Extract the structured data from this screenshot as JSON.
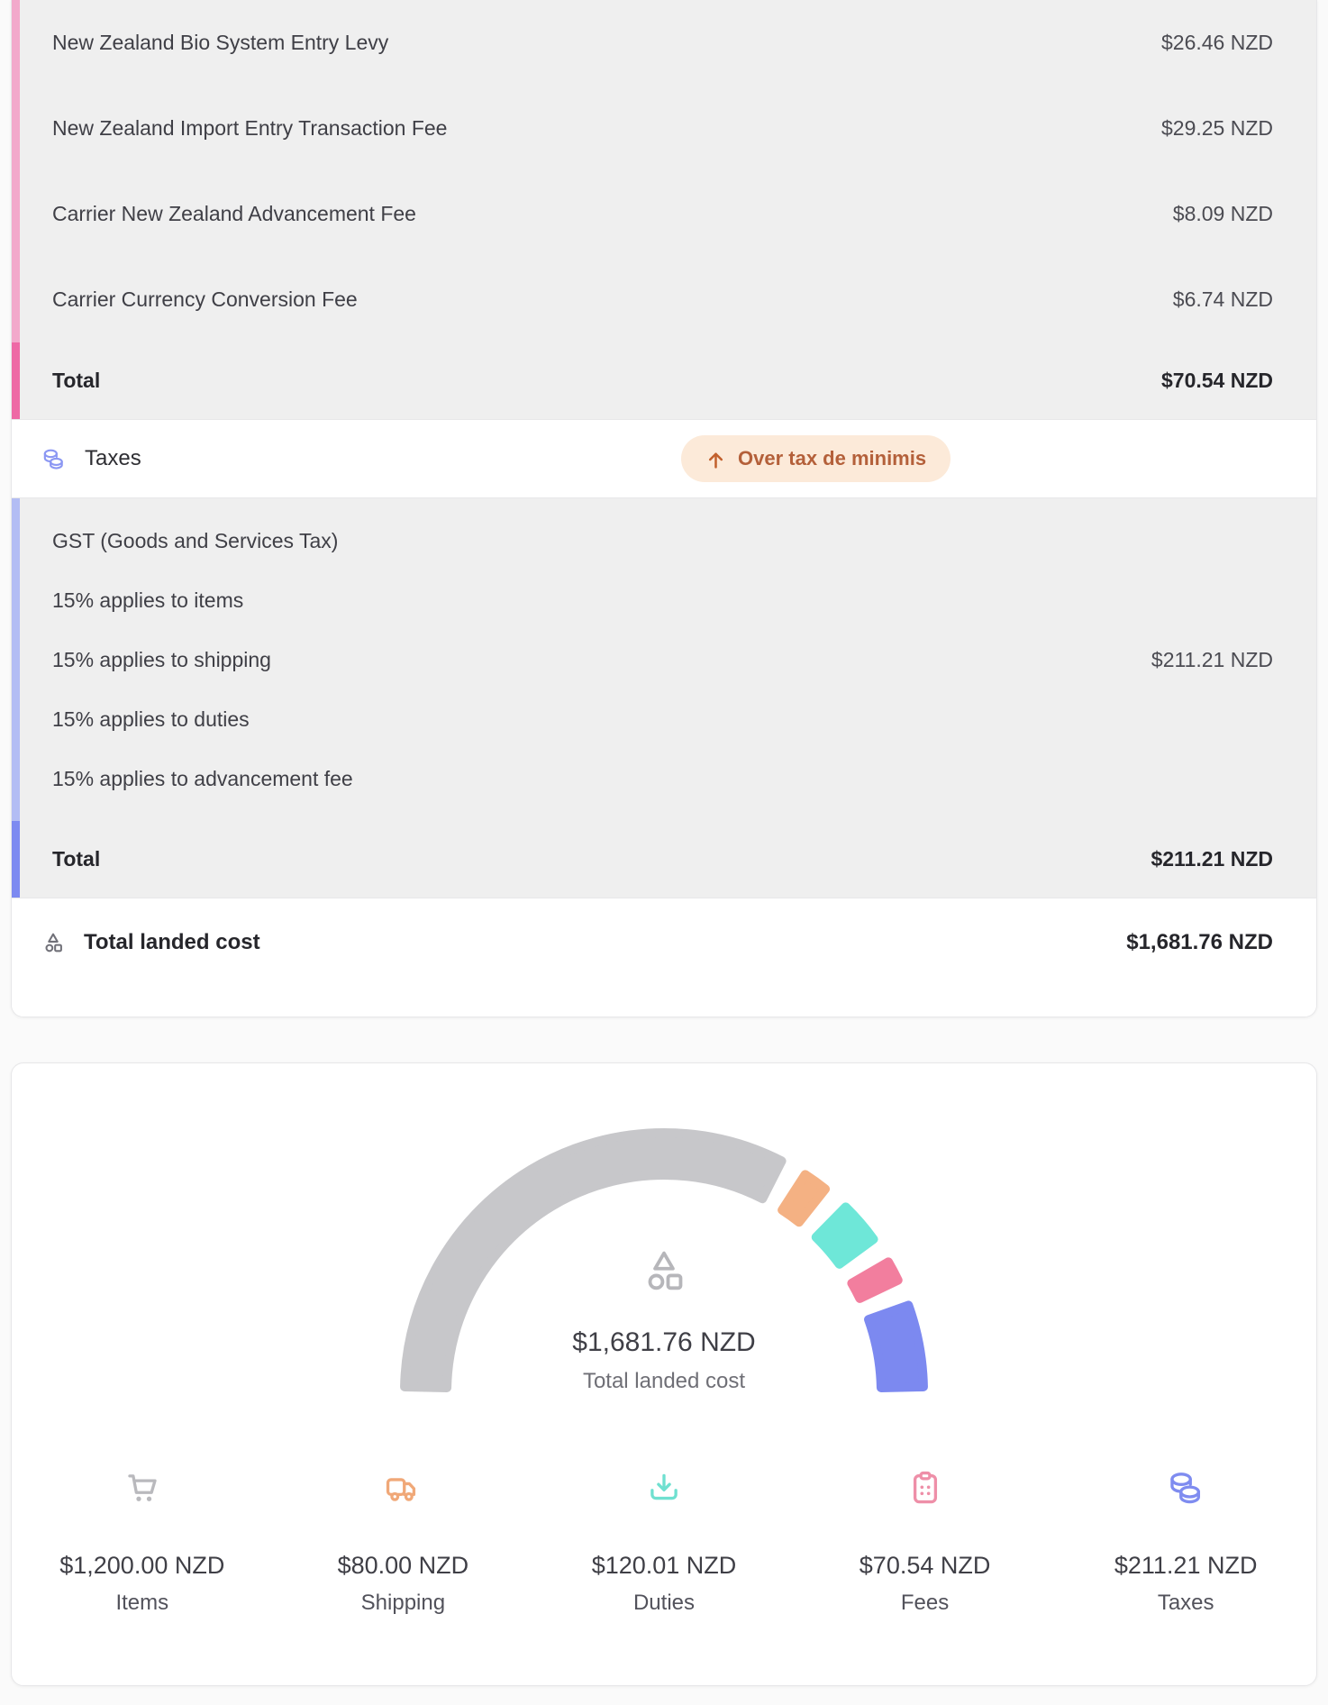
{
  "fees_section": {
    "rows": [
      {
        "label": "New Zealand Bio System Entry Levy",
        "amount": "$26.46 NZD"
      },
      {
        "label": "New Zealand Import Entry Transaction Fee",
        "amount": "$29.25 NZD"
      },
      {
        "label": "Carrier New Zealand Advancement Fee",
        "amount": "$8.09 NZD"
      },
      {
        "label": "Carrier Currency Conversion Fee",
        "amount": "$6.74 NZD"
      }
    ],
    "total": {
      "label": "Total",
      "amount": "$70.54 NZD"
    }
  },
  "taxes_section": {
    "header": "Taxes",
    "badge": "Over tax de minimis",
    "rows": [
      {
        "label": "GST (Goods and Services Tax)",
        "amount": ""
      },
      {
        "label": "15% applies to items",
        "amount": ""
      },
      {
        "label": "15% applies to shipping",
        "amount": "$211.21 NZD"
      },
      {
        "label": "15% applies to duties",
        "amount": ""
      },
      {
        "label": "15% applies to advancement fee",
        "amount": ""
      }
    ],
    "total": {
      "label": "Total",
      "amount": "$211.21 NZD"
    }
  },
  "summary": {
    "label": "Total landed cost",
    "amount": "$1,681.76 NZD"
  },
  "chart_data": {
    "type": "pie",
    "variant": "semicircle-gauge",
    "title": "Total landed cost",
    "center_value": "$1,681.76 NZD",
    "center_label": "Total landed cost",
    "categories": [
      "Items",
      "Shipping",
      "Duties",
      "Fees",
      "Taxes"
    ],
    "values": [
      1200.0,
      80.0,
      120.01,
      70.54,
      211.21
    ],
    "display_values": [
      "$1,200.00 NZD",
      "$80.00 NZD",
      "$120.01 NZD",
      "$70.54 NZD",
      "$211.21 NZD"
    ],
    "total": 1681.76,
    "colors": [
      "#c7c7ca",
      "#f4b183",
      "#6ee7d8",
      "#f27e9e",
      "#7c89f0"
    ],
    "legend_position": "bottom",
    "legend_icons": [
      "cart-icon",
      "truck-icon",
      "download-icon",
      "clipboard-icon",
      "coins-icon"
    ]
  },
  "ui_colors": {
    "fees_border_light": "#f2a9cb",
    "fees_border_strong": "#ee69a5",
    "taxes_border_light": "#b3bdf4",
    "taxes_border_strong": "#7d8af1",
    "badge_bg": "#fcead9",
    "badge_text": "#b4603a",
    "section_bg": "#efefef"
  }
}
